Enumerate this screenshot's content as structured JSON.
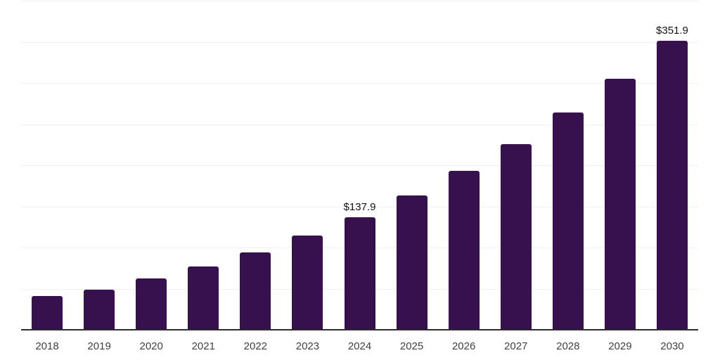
{
  "chart_data": {
    "type": "bar",
    "title": "",
    "xlabel": "",
    "ylabel": "",
    "categories": [
      "2018",
      "2019",
      "2020",
      "2021",
      "2022",
      "2023",
      "2024",
      "2025",
      "2026",
      "2027",
      "2028",
      "2029",
      "2030"
    ],
    "values": [
      41.8,
      49.2,
      63.3,
      77.5,
      95.2,
      115.0,
      137.9,
      163.9,
      193.7,
      226.1,
      265.0,
      305.9,
      351.9
    ],
    "data_labels": {
      "2024": "$137.9",
      "2030": "$351.9"
    },
    "currency_prefix": "$",
    "ylim": [
      0,
      400
    ],
    "grid_step": 50,
    "grid": "horizontal-only",
    "legend_position": "none",
    "colors": {
      "bar": "#37114d",
      "axis_line": "#2d2d2d",
      "gridline": "#efefef",
      "tick_label": "#404040",
      "value_label": "#121212",
      "background": "#ffffff"
    }
  }
}
